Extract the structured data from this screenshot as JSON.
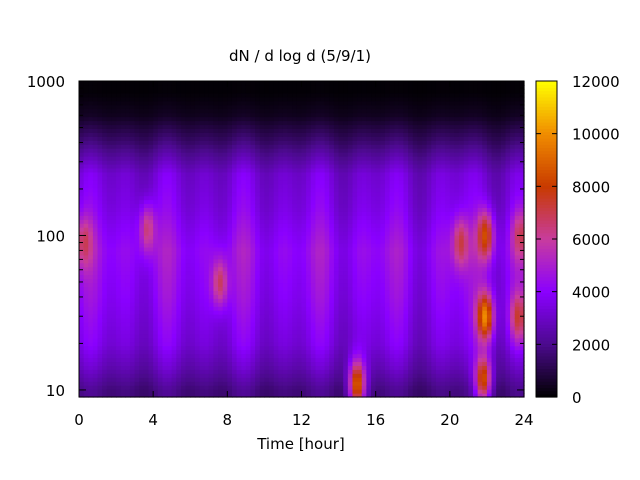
{
  "chart_data": {
    "type": "heatmap",
    "title": "dN / d log d (5/9/1)",
    "xlabel": "Time [hour]",
    "ylabel": "",
    "x_range": [
      0,
      24
    ],
    "x_ticks": [
      0,
      4,
      8,
      12,
      16,
      20,
      24
    ],
    "y_scale": "log",
    "y_range": [
      9,
      1000
    ],
    "y_ticks": [
      10,
      100,
      1000
    ],
    "colorbar": {
      "range": [
        0,
        12000
      ],
      "ticks": [
        0,
        2000,
        4000,
        6000,
        8000,
        10000,
        12000
      ],
      "palette": [
        "#000000",
        "#4b0a8c",
        "#8a00ff",
        "#c83c9e",
        "#c83a00",
        "#f08c00",
        "#ffff00"
      ]
    },
    "baseline_profile": [
      {
        "d": 10,
        "value": 2000
      },
      {
        "d": 14,
        "value": 3000
      },
      {
        "d": 20,
        "value": 3800
      },
      {
        "d": 40,
        "value": 4400
      },
      {
        "d": 80,
        "value": 4800
      },
      {
        "d": 150,
        "value": 4000
      },
      {
        "d": 250,
        "value": 3600
      },
      {
        "d": 400,
        "value": 1800
      },
      {
        "d": 600,
        "value": 500
      },
      {
        "d": 850,
        "value": 100
      }
    ],
    "hotspots": [
      {
        "time": 0.3,
        "d": 90,
        "value": 7000
      },
      {
        "time": 3.7,
        "d": 110,
        "value": 6500
      },
      {
        "time": 7.6,
        "d": 50,
        "value": 6800
      },
      {
        "time": 15.0,
        "d": 11,
        "value": 9000
      },
      {
        "time": 20.6,
        "d": 90,
        "value": 7200
      },
      {
        "time": 21.9,
        "d": 100,
        "value": 8500
      },
      {
        "time": 21.9,
        "d": 30,
        "value": 10000
      },
      {
        "time": 21.8,
        "d": 12,
        "value": 8500
      },
      {
        "time": 23.8,
        "d": 100,
        "value": 7000
      },
      {
        "time": 23.7,
        "d": 30,
        "value": 7500
      }
    ]
  }
}
